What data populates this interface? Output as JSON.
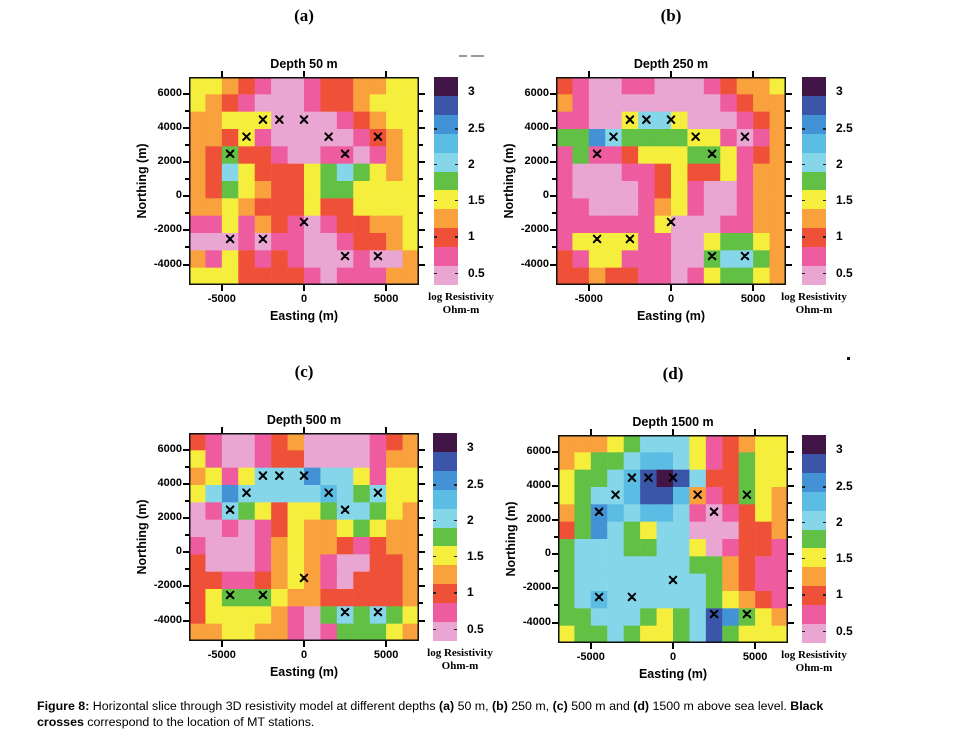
{
  "figure": {
    "caption_lines": [
      [
        {
          "text": "Figure 8:",
          "bold": true
        },
        {
          "text": " Horizontal slice through 3D resistivity model at different depths ",
          "bold": false
        },
        {
          "text": "(a)",
          "bold": true
        },
        {
          "text": " 50 m, ",
          "bold": false
        },
        {
          "text": "(b)",
          "bold": true
        },
        {
          "text": " 250 m, ",
          "bold": false
        },
        {
          "text": "(c)",
          "bold": true
        },
        {
          "text": " 500 m and ",
          "bold": false
        },
        {
          "text": "(d)",
          "bold": true
        },
        {
          "text": " 1500 m above sea level. ",
          "bold": false
        },
        {
          "text": "Black",
          "bold": true
        }
      ],
      [
        {
          "text": "crosses",
          "bold": true
        },
        {
          "text": " correspond to the location of MT stations.",
          "bold": false
        }
      ]
    ]
  },
  "chart_data": {
    "type": "heatmap",
    "description": "Four horizontal slices through a 3D log-resistivity model; grids are palette indices (hex char 0-a), 14 columns (x -7000..7000 m) by 12 rows (y 7000..-5000 m, top to bottom)",
    "depth_values_m": [
      50,
      250,
      500,
      1500
    ],
    "panels": [
      {
        "id": "a",
        "letter": "(a)",
        "title": "Depth 50 m",
        "grid": [
          "44321001223344",
          "43210001223444",
          "33444000012344",
          "33241000001234",
          "32522100110134",
          "32642224565434",
          "32543224554444",
          "33432224224444",
          "11413210122334",
          "00010110012234",
          "31421210001003",
          "44422221011133"
        ]
      },
      {
        "id": "b",
        "letter": "(b)",
        "title": "Depth 250 m",
        "grid": [
          "21001100012334",
          "31000000001233",
          "11004664000123",
          "55865555441013",
          "15112444554123",
          "10001124224133",
          "10000124100133",
          "11000134100133",
          "11111140001133",
          "14444110045543",
          "21441110056653",
          "22322110145543"
        ]
      },
      {
        "id": "c",
        "letter": "(c)",
        "title": "Depth 500 m",
        "grid": [
          "21001230000123",
          "41001220000133",
          "34146668664144",
          "46866666765644",
          "01654244566543",
          "00101243345433",
          "10001343321233",
          "20001343100223",
          "22112343102223",
          "24555433222223",
          "24444310565654",
          "33443310155543"
        ]
      },
      {
        "id": "d",
        "letter": "(d)",
        "title": "Depth 1500 m",
        "grid": [
          "33345666412344",
          "34556776412544",
          "455679a9622544",
          "45667997312543",
          "35876776101243",
          "25865466000223",
          "56665566401221",
          "56666666553211",
          "56666666653211",
          "56766666654321",
          "55666545698543",
          "45565445695444"
        ]
      }
    ],
    "grid_extent": {
      "x_m": [
        -7000,
        7000
      ],
      "y_m": [
        -5200,
        7000
      ],
      "cols": 14,
      "rows": 12
    },
    "axes": {
      "xlabel": "Easting (m)",
      "ylabel": "Northing (m)",
      "xticks": [
        "-5000",
        "0",
        "5000"
      ],
      "xtick_values": [
        -5000,
        0,
        5000
      ],
      "yticks": [
        "6000",
        "4000",
        "2000",
        "0",
        "-2000",
        "-4000"
      ],
      "ytick_values": [
        6000,
        4000,
        2000,
        0,
        -2000,
        -4000
      ],
      "minor_ytick_values": [
        5000,
        3000,
        1000,
        -1000,
        -3000
      ]
    },
    "palette_low_to_high": [
      "#e9a6d3",
      "#ee5b9e",
      "#ef5138",
      "#f9a13c",
      "#f6ee3d",
      "#62c045",
      "#85d6e9",
      "#5cbde4",
      "#4492d6",
      "#3b56a9",
      "#411546"
    ],
    "palette_bin_values_low_to_high": [
      0.5,
      0.75,
      1.0,
      1.25,
      1.5,
      1.75,
      2.0,
      2.25,
      2.5,
      2.75,
      3.1
    ],
    "colorbar": {
      "title_line1": "log Resistivity",
      "title_line2": "Ohm-m",
      "tick_labels": [
        "3",
        "2.5",
        "2",
        "1.5",
        "1",
        "0.5"
      ],
      "tick_fractions_from_top": [
        0.072,
        0.252,
        0.423,
        0.594,
        0.77,
        0.945
      ]
    },
    "stations_easting_northing": [
      [
        -2500,
        4500
      ],
      [
        -1500,
        4500
      ],
      [
        0,
        4500
      ],
      [
        -3500,
        3500
      ],
      [
        1500,
        3500
      ],
      [
        4500,
        3500
      ],
      [
        -4500,
        2500
      ],
      [
        2500,
        2500
      ],
      [
        0,
        -1500
      ],
      [
        -4500,
        -2500
      ],
      [
        -2500,
        -2500
      ],
      [
        2500,
        -3500
      ],
      [
        4500,
        -3500
      ]
    ]
  }
}
